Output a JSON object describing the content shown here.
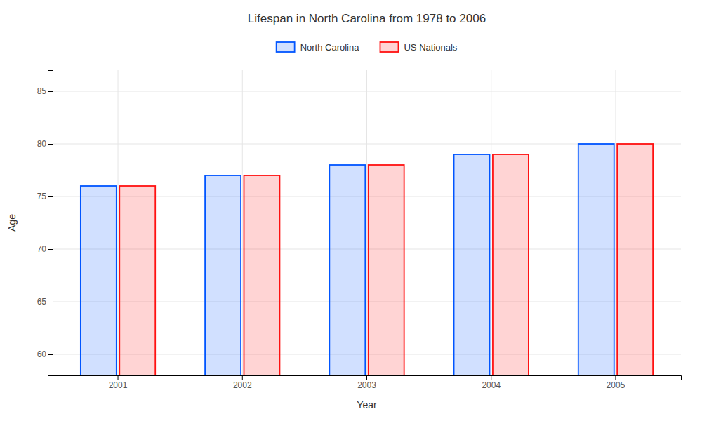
{
  "chart_data": {
    "type": "bar",
    "title": "Lifespan in North Carolina from 1978 to 2006",
    "x_label": "Year",
    "y_label": "Age",
    "categories": [
      "2001",
      "2002",
      "2003",
      "2004",
      "2005"
    ],
    "series": [
      {
        "name": "North Carolina",
        "color": "#0055ff",
        "values": [
          76,
          77,
          78,
          79,
          80
        ]
      },
      {
        "name": "US Nationals",
        "color": "#ff1111",
        "values": [
          76,
          77,
          78,
          79,
          80
        ]
      }
    ],
    "ylim": [
      58,
      87
    ],
    "yticks": [
      60,
      65,
      70,
      75,
      80,
      85
    ],
    "grid": true,
    "legend": "top"
  }
}
